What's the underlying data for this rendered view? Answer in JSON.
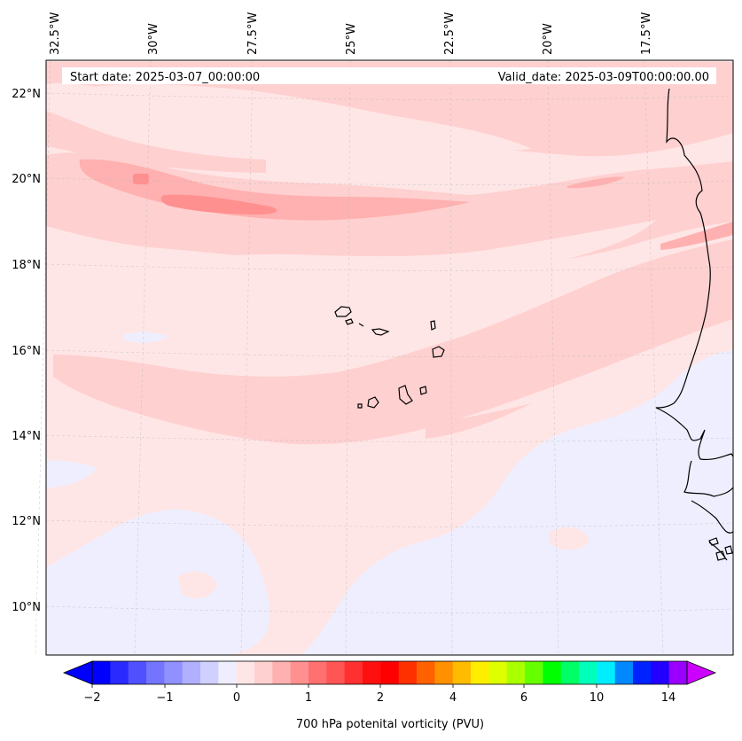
{
  "header": {
    "start_date": "Start date: 2025-03-07_00:00:00",
    "valid_date": "Valid_date: 2025-03-09T00:00:00.00"
  },
  "longitude_labels": [
    "32.5°W",
    "30°W",
    "27.5°W",
    "25°W",
    "22.5°W",
    "20°W",
    "17.5°W"
  ],
  "latitude_labels": [
    "22°N",
    "20°N",
    "18°N",
    "16°N",
    "14°N",
    "12°N",
    "10°N"
  ],
  "colorbar": {
    "label": "700 hPa potenital vorticity (PVU)",
    "tick_labels": [
      "−2",
      "−1",
      "0",
      "1",
      "2",
      "4",
      "6",
      "10",
      "14"
    ],
    "colors": [
      "#0000ff",
      "#2a2aff",
      "#5050ff",
      "#7474ff",
      "#9090ff",
      "#b0b0ff",
      "#d0d0ff",
      "#eeeeff",
      "#ffe6e6",
      "#ffd0d0",
      "#ffb0b0",
      "#ff9090",
      "#ff7070",
      "#ff5555",
      "#ff3030",
      "#ff1010",
      "#ff0000",
      "#ff3000",
      "#ff6000",
      "#ff9000",
      "#ffbb00",
      "#ffee00",
      "#ddff00",
      "#aaff00",
      "#66ff00",
      "#00ff00",
      "#00ff66",
      "#00ffbb",
      "#00eeff",
      "#0088ff",
      "#0022ff",
      "#2200ff",
      "#9900ff"
    ],
    "extend_low_color": "#0000ff",
    "extend_high_color": "#cc00ff"
  },
  "field_colors": {
    "neutral": "#ffe6e6",
    "light_pink": "#ffd0d0",
    "mid_pink": "#ffb0b0",
    "strong_pink": "#ff9090",
    "pale_blue": "#eeeeff"
  }
}
